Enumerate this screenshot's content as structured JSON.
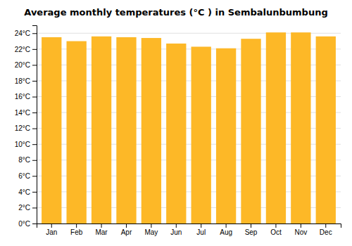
{
  "chart_data": {
    "type": "bar",
    "title": "Average monthly temperatures (°C ) in Sembalunbumbung",
    "categories": [
      "Jan",
      "Feb",
      "Mar",
      "Apr",
      "May",
      "Jun",
      "Jul",
      "Aug",
      "Sep",
      "Oct",
      "Nov",
      "Dec"
    ],
    "values": [
      23.5,
      23.0,
      23.6,
      23.5,
      23.4,
      22.7,
      22.3,
      22.1,
      23.3,
      24.1,
      24.1,
      23.6
    ],
    "color": "#FDB827",
    "ylim": [
      0,
      25
    ],
    "yticks": [
      {
        "value": 0,
        "label": "0°C"
      },
      {
        "value": 2,
        "label": "2°C"
      },
      {
        "value": 4,
        "label": "4°C"
      },
      {
        "value": 6,
        "label": "6°C"
      },
      {
        "value": 8,
        "label": "8°C"
      },
      {
        "value": 10,
        "label": "10°C"
      },
      {
        "value": 12,
        "label": "12°C"
      },
      {
        "value": 14,
        "label": "14°C"
      },
      {
        "value": 16,
        "label": "16°C"
      },
      {
        "value": 18,
        "label": "18°C"
      },
      {
        "value": 20,
        "label": "20°C"
      },
      {
        "value": 22,
        "label": "22°C"
      },
      {
        "value": 24,
        "label": "24°C"
      }
    ],
    "grid": true
  }
}
